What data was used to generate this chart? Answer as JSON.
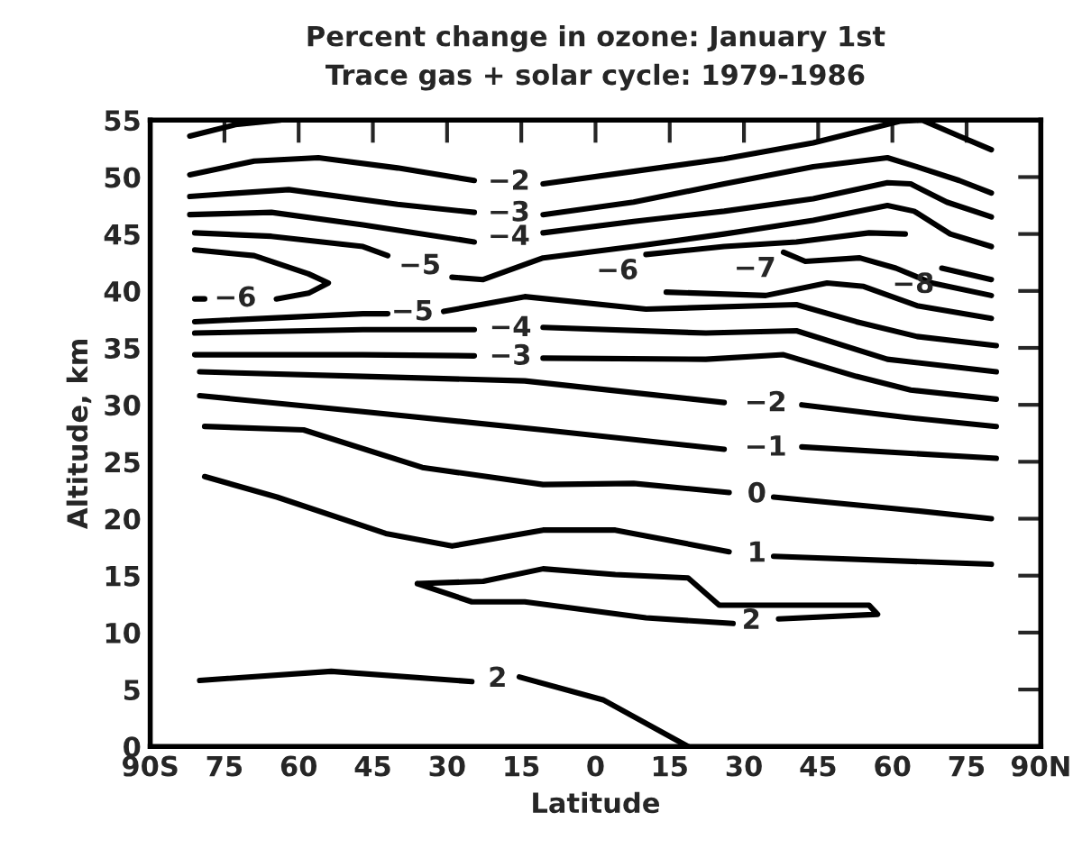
{
  "chart_data": {
    "type": "line",
    "title": "Percent change in ozone: January 1st",
    "subtitle": "Trace gas + solar cycle: 1979-1986",
    "xlabel": "Latitude",
    "ylabel": "Altitude, km",
    "xlim": [
      -90,
      90
    ],
    "xticks": [
      {
        "value": -90,
        "label": "90S"
      },
      {
        "value": -75,
        "label": "75"
      },
      {
        "value": -60,
        "label": "60"
      },
      {
        "value": -45,
        "label": "45"
      },
      {
        "value": -30,
        "label": "30"
      },
      {
        "value": -15,
        "label": "15"
      },
      0,
      {
        "value": 15,
        "label": "15"
      },
      30,
      45,
      60,
      75,
      {
        "value": 90,
        "label": "90N"
      }
    ],
    "ylim": [
      0,
      55
    ],
    "yticks": [
      0,
      5,
      10,
      15,
      20,
      25,
      30,
      35,
      40,
      45,
      50,
      55
    ],
    "grid": false,
    "marker": "none",
    "line_style": "solid",
    "series": [
      {
        "color": "#000000",
        "x": [
          -82,
          -72.8,
          -63.7
        ],
        "values": [
          53.6,
          54.6,
          55
        ]
      },
      {
        "name": "−2",
        "color": "#000000",
        "x": [
          -82,
          -69,
          -56,
          -40,
          -24.5,
          -17.5,
          -10.6,
          7.7,
          26,
          44,
          61.5,
          66,
          73.5,
          80
        ],
        "values": [
          50.2,
          51.4,
          51.7,
          50.8,
          49.7,
          null,
          49.4,
          50.5,
          51.6,
          53,
          54.9,
          55,
          53.6,
          52.4
        ]
      },
      {
        "name": "−3",
        "color": "#000000",
        "x": [
          -82,
          -62,
          -40,
          -24.5,
          -17.5,
          -10.6,
          7.7,
          26,
          44,
          59,
          65,
          73.5,
          80
        ],
        "values": [
          48.3,
          48.9,
          47.6,
          46.9,
          null,
          46.7,
          47.8,
          49.4,
          50.9,
          51.7,
          50.9,
          49.7,
          48.6
        ]
      },
      {
        "name": "−4",
        "color": "#000000",
        "x": [
          -82,
          -65.5,
          -47,
          -24.5,
          -17.5,
          -10.6,
          7.7,
          26,
          44,
          59,
          63.7,
          71,
          80
        ],
        "values": [
          46.7,
          46.9,
          45.8,
          44.3,
          null,
          45.1,
          46.1,
          47,
          48.1,
          49.5,
          49.4,
          47.8,
          46.5
        ]
      },
      {
        "name": "−5",
        "color": "#000000",
        "x": [
          -81,
          -65.5,
          -47,
          -42,
          -35.5,
          -29,
          -22.7,
          -10.6,
          7.7,
          26,
          44,
          59,
          64.4,
          71.7,
          80
        ],
        "values": [
          45.1,
          44.8,
          43.9,
          43.1,
          null,
          41.2,
          41,
          42.9,
          43.9,
          45,
          46.2,
          47.5,
          47,
          45,
          43.9
        ]
      },
      {
        "name": "−6",
        "color": "#000000",
        "x": [
          -81,
          -69,
          -58,
          -54,
          -58,
          -64.5,
          -72.8,
          -81,
          -79
        ],
        "values": [
          43.6,
          43.1,
          41.5,
          40.7,
          39.8,
          39.3,
          null,
          39.3,
          39.3
        ]
      },
      {
        "name": "−6",
        "color": "#000000",
        "x": [
          10.2,
          26,
          40.6,
          55.3,
          62.6
        ],
        "values": [
          43.2,
          43.9,
          44.3,
          45.1,
          45
        ]
      },
      {
        "name": "−7",
        "color": "#000000",
        "x": [
          38,
          42.4,
          53.4,
          60.7,
          68,
          80
        ],
        "values": [
          43.4,
          42.6,
          42.9,
          42,
          40.7,
          39.6
        ]
      },
      {
        "name": "−8",
        "color": "#000000",
        "x": [
          70,
          80
        ],
        "values": [
          42,
          41
        ]
      },
      {
        "color": "#000000",
        "x": [
          14.3,
          34.4,
          46.8,
          54.2,
          65,
          80
        ],
        "values": [
          39.9,
          39.6,
          40.7,
          40.4,
          38.7,
          37.6
        ]
      },
      {
        "name": "−5",
        "color": "#000000",
        "x": [
          -81,
          -47,
          -42,
          -37,
          -30.7,
          -14.3,
          10.2,
          40.6,
          52.7,
          65,
          81
        ],
        "values": [
          37.3,
          38,
          38,
          null,
          38.2,
          39.5,
          38.4,
          38.8,
          37.3,
          36,
          35.2
        ]
      },
      {
        "name": "−4",
        "color": "#000000",
        "x": [
          -81,
          -47,
          -24.5,
          -17.2,
          -10.6,
          22.3,
          40.6,
          59,
          81
        ],
        "values": [
          36.3,
          36.6,
          36.6,
          null,
          36.8,
          36.3,
          36.5,
          34,
          32.9
        ]
      },
      {
        "name": "−3",
        "color": "#000000",
        "x": [
          -81,
          -47,
          -24.5,
          -17.2,
          -10.6,
          22.3,
          38,
          52.7,
          63.7,
          81
        ],
        "values": [
          34.4,
          34.4,
          34.3,
          null,
          34.1,
          34,
          34.4,
          32.5,
          31.3,
          30.5
        ]
      },
      {
        "name": "−2",
        "color": "#000000",
        "x": [
          -80,
          -47,
          -14.3,
          26,
          34.4,
          41.7,
          62.6,
          81
        ],
        "values": [
          32.9,
          32.5,
          32.1,
          30.2,
          null,
          30,
          28.9,
          28.1
        ]
      },
      {
        "name": "−1",
        "color": "#000000",
        "x": [
          -80,
          -47,
          -10.6,
          26,
          34.4,
          41.7,
          81
        ],
        "values": [
          30.8,
          29.4,
          27.8,
          26.1,
          null,
          26.3,
          25.3
        ]
      },
      {
        "name": "0",
        "color": "#000000",
        "x": [
          -79,
          -59,
          -35,
          -10.6,
          7.7,
          27,
          32.6,
          36,
          62.6,
          80
        ],
        "values": [
          28.1,
          27.8,
          24.5,
          23,
          23.1,
          22.3,
          null,
          21.9,
          20.8,
          20
        ]
      },
      {
        "name": "1",
        "color": "#000000",
        "x": [
          -79,
          -64.4,
          -42.4,
          -29,
          -10.6,
          4,
          27,
          32.6,
          36,
          80
        ],
        "values": [
          23.7,
          21.9,
          18.7,
          17.6,
          19,
          19,
          17.1,
          null,
          16.7,
          16
        ]
      },
      {
        "name": "2",
        "color": "#000000",
        "x": [
          -36,
          -22.7,
          -10.6,
          4,
          18.7,
          25,
          55.3,
          57,
          37,
          31.5,
          27.8,
          10.2,
          -14.3,
          -25,
          -36
        ],
        "values": [
          14.3,
          14.5,
          15.6,
          15.1,
          14.8,
          12.4,
          12.4,
          11.6,
          11.2,
          null,
          10.8,
          11.3,
          12.7,
          12.7,
          14.3
        ]
      },
      {
        "name": "2",
        "color": "#000000",
        "x": [
          -80,
          -53.4,
          -25,
          -19.8,
          -15.4,
          1.5,
          18.7
        ],
        "values": [
          5.8,
          6.6,
          5.7,
          null,
          6.1,
          4.1,
          0
        ]
      }
    ]
  }
}
